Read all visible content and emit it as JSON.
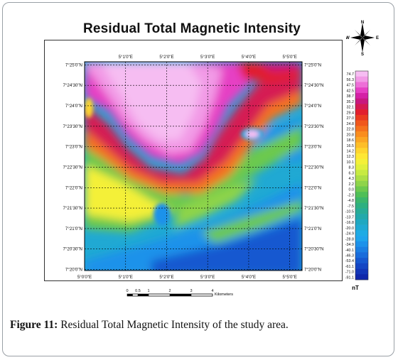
{
  "title": "Residual Total Magnetic Intensity",
  "caption": {
    "label": "Figure 11:",
    "text": " Residual Total Magnetic Intensity of the study area."
  },
  "map": {
    "x_ticks_top": [
      "5°1'0\"E",
      "5°2'0\"E",
      "5°3'0\"E",
      "5°4'0\"E",
      "5°5'0\"E"
    ],
    "x_ticks_bottom": [
      "5°0'0\"E",
      "5°1'0\"E",
      "5°2'0\"E",
      "5°3'0\"E",
      "5°4'0\"E",
      "5°5'0\"E"
    ],
    "y_ticks_left": [
      "7°25'0\"N",
      "7°24'30\"N",
      "7°24'0\"N",
      "7°23'30\"N",
      "7°23'0\"N",
      "7°22'30\"N",
      "7°22'0\"N",
      "7°21'30\"N",
      "7°21'0\"N",
      "7°20'30\"N",
      "7°20'0\"N"
    ],
    "y_ticks_right": [
      "7°25'0\"N",
      "7°24'30\"N",
      "7°24'0\"N",
      "7°23'30\"N",
      "7°23'0\"N",
      "7°22'30\"N",
      "7°22'0\"N",
      "7°21'30\"N",
      "7°21'0\"N",
      "7°20'30\"N",
      "7°20'0\"N"
    ]
  },
  "scale_bar": {
    "ticks": [
      "0",
      "0.5",
      "1",
      "2",
      "3",
      "4"
    ],
    "unit": "Kilometers"
  },
  "north_arrow": {
    "n": "N",
    "s": "S",
    "e": "E",
    "w": "W"
  },
  "legend": {
    "values": [
      "74.7",
      "56.3",
      "47.5",
      "42.5",
      "38.7",
      "35.2",
      "32.1",
      "29.4",
      "27.0",
      "24.8",
      "22.8",
      "20.8",
      "18.6",
      "16.5",
      "14.2",
      "12.3",
      "10.1",
      "8.3",
      "6.3",
      "4.3",
      "2.2",
      "0.0",
      "-2.3",
      "-4.8",
      "-7.5",
      "-10.5",
      "-13.7",
      "-16.8",
      "-20.0",
      "-24.9",
      "-28.8",
      "-34.9",
      "-40.1",
      "-46.3",
      "-53.4",
      "-61.1",
      "-71.0",
      "-91.1"
    ],
    "colors": [
      "#f6bdf2",
      "#f29ae6",
      "#ed6fd7",
      "#e640c4",
      "#d421a6",
      "#c8187f",
      "#d51a53",
      "#e21e2d",
      "#ea3b1e",
      "#f0571b",
      "#f5721c",
      "#f98d1e",
      "#fba623",
      "#fdbe28",
      "#fed52e",
      "#fee733",
      "#f4f038",
      "#e0f03c",
      "#c7ea42",
      "#acdf46",
      "#8ed44a",
      "#6cc94e",
      "#4fbf57",
      "#3bb66b",
      "#2eb080",
      "#27ac96",
      "#22a9ab",
      "#20a8c0",
      "#20a9d3",
      "#1fabe4",
      "#1fa4ec",
      "#1d92ea",
      "#1b7fe3",
      "#196cdb",
      "#1658d0",
      "#1446c4",
      "#1236b8",
      "#1027ab"
    ],
    "unit": "nT"
  }
}
